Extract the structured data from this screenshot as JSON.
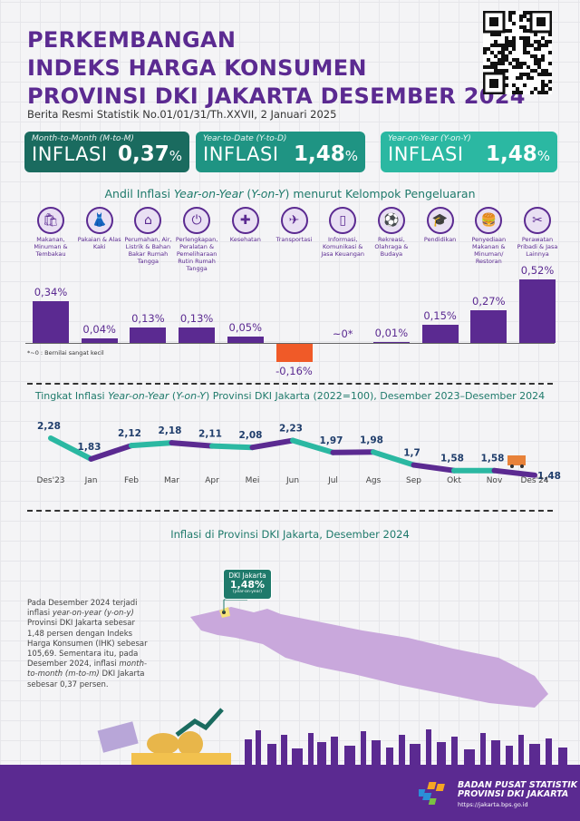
{
  "header": {
    "title_lines": [
      "PERKEMBANGAN",
      "INDEKS HARGA KONSUMEN",
      "PROVINSI DKI JAKARTA DESEMBER 2024"
    ],
    "subtitle": "Berita Resmi Statistik No.01/01/31/Th.XXVII, 2 Januari 2025",
    "qr_icon": "qr-code"
  },
  "summary": [
    {
      "label": "Month-to-Month (M-to-M)",
      "word": "INFLASI",
      "value": "0,37",
      "unit": "%",
      "color": "#1a6b5f"
    },
    {
      "label": "Year-to-Date (Y-to-D)",
      "word": "INFLASI",
      "value": "1,48",
      "unit": "%",
      "color": "#1f9483"
    },
    {
      "label": "Year-on-Year (Y-on-Y)",
      "word": "INFLASI",
      "value": "1,48",
      "unit": "%",
      "color": "#2bb8a2"
    }
  ],
  "chart_data": [
    {
      "type": "bar",
      "title_pre": "Andil Inflasi ",
      "title_it": "Year-on-Year",
      "title_mid": " (",
      "title_it2": "Y-on-Y",
      "title_post": ") menurut Kelompok Pengeluaran",
      "categories": [
        "Makanan, Minuman & Tembakau",
        "Pakaian & Alas Kaki",
        "Perumahan, Air, Listrik & Bahan Bakar Rumah Tangga",
        "Perlengkapan, Peralatan & Pemeliharaan Rutin Rumah Tangga",
        "Kesehatan",
        "Transportasi",
        "Informasi, Komunikasi & Jasa Keuangan",
        "Rekreasi, Olahraga & Budaya",
        "Pendidikan",
        "Penyediaan Makanan & Minuman/ Restoran",
        "Perawatan Pribadi & Jasa Lainnya"
      ],
      "icons": [
        "grocery-bag",
        "dress",
        "house",
        "plug",
        "first-aid",
        "airplane",
        "smartphone",
        "soccer-player",
        "graduation-cap",
        "fast-food",
        "scissors-comb"
      ],
      "values": [
        0.34,
        0.04,
        0.13,
        0.13,
        0.05,
        -0.16,
        0,
        0.01,
        0.15,
        0.27,
        0.52
      ],
      "labels": [
        "0,34%",
        "0,04%",
        "0,13%",
        "0,13%",
        "0,05%",
        "-0,16%",
        "~0*",
        "0,01%",
        "0,15%",
        "0,27%",
        "0,52%"
      ],
      "unit": "%",
      "colors": {
        "positive": "#5b2a91",
        "negative": "#f05a28"
      },
      "note": "*~0 : Bernilai sangat kecil"
    },
    {
      "type": "line",
      "title_pre": "Tingkat Inflasi ",
      "title_it": "Year-on-Year",
      "title_mid": " (",
      "title_it2": "Y-on-Y",
      "title_post": ") Provinsi DKI Jakarta (2022=100), Desember 2023–Desember 2024",
      "categories": [
        "Des'23",
        "Jan",
        "Feb",
        "Mar",
        "Apr",
        "Mei",
        "Jun",
        "Jul",
        "Ags",
        "Sep",
        "Okt",
        "Nov",
        "Des'24"
      ],
      "values": [
        2.28,
        1.83,
        2.12,
        2.18,
        2.11,
        2.08,
        2.23,
        1.97,
        1.98,
        1.7,
        1.58,
        1.58,
        1.48
      ],
      "labels": [
        "2,28",
        "1,83",
        "2,12",
        "2,18",
        "2,11",
        "2,08",
        "2,23",
        "1,97",
        "1,98",
        "1,7",
        "1,58",
        "1,58",
        "1,48"
      ],
      "segment_colors": [
        "#2bb8a2",
        "#5b2a91"
      ]
    }
  ],
  "map": {
    "title": "Inflasi di Provinsi DKI Jakarta, Desember 2024",
    "callout_region": "DKI Jakarta",
    "callout_value": "1,48%",
    "callout_note": "(year-on-year)",
    "paragraph": [
      {
        "t": "Pada Desember 2024 terjadi inflasi "
      },
      {
        "t": "year-on-year (y-on-y)",
        "i": true
      },
      {
        "t": " Provinsi DKI Jakarta sebesar 1,48 persen dengan Indeks Harga Konsumen (IHK) sebesar 105,69. Sementara itu, pada Desember 2024, inflasi "
      },
      {
        "t": "month-to-month (m-to-m)",
        "i": true
      },
      {
        "t": " DKI Jakarta sebesar 0,37 persen."
      }
    ],
    "map_color": "#c9a8dc",
    "highlight_color": "#f5e27a"
  },
  "footer": {
    "org_line1": "BADAN PUSAT STATISTIK",
    "org_line2": "PROVINSI DKI JAKARTA",
    "url": "https://jakarta.bps.go.id"
  }
}
